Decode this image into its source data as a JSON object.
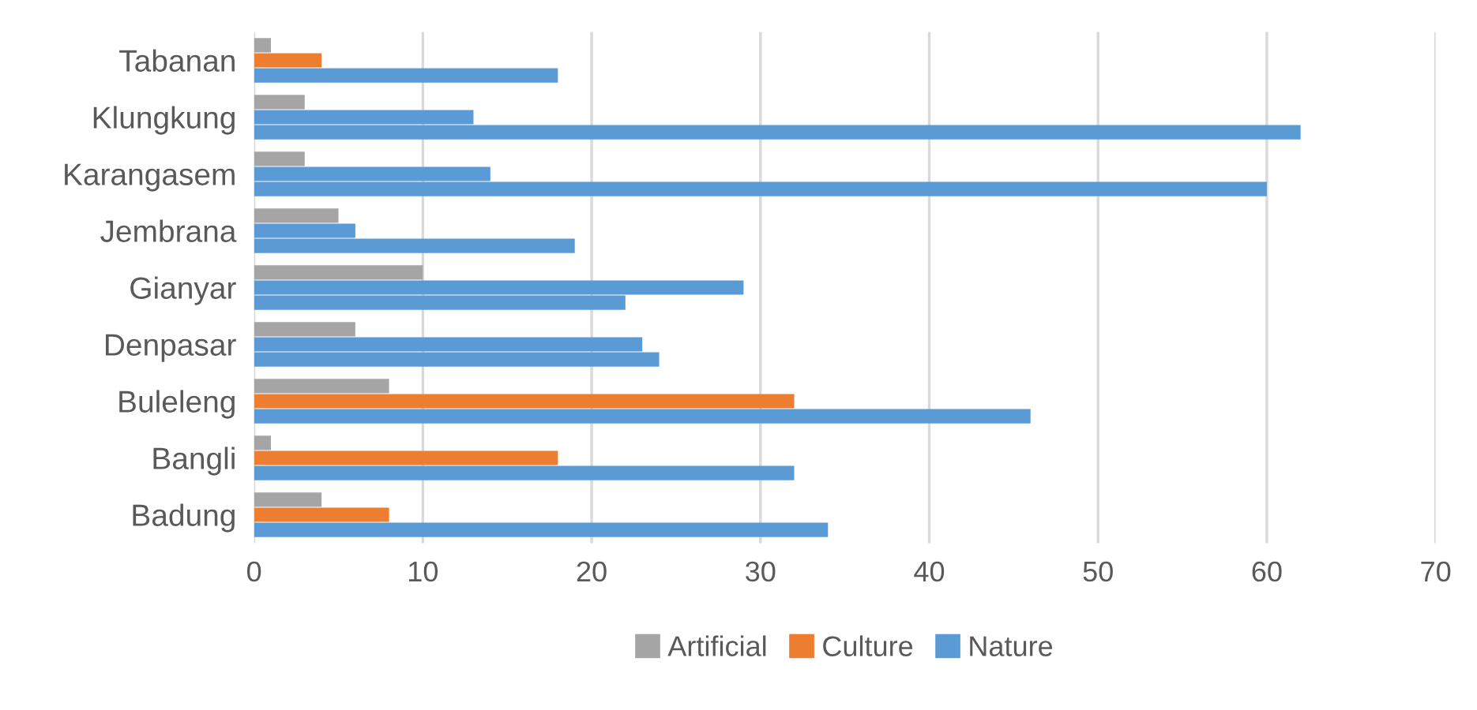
{
  "chart_data": {
    "type": "bar",
    "orientation": "horizontal",
    "categories": [
      "Tabanan",
      "Klungkung",
      "Karangasem",
      "Jembrana",
      "Gianyar",
      "Denpasar",
      "Buleleng",
      "Bangli",
      "Badung"
    ],
    "series": [
      {
        "name": "Artificial",
        "color": "#a5a5a5",
        "values": [
          1,
          3,
          3,
          5,
          10,
          6,
          8,
          1,
          4
        ]
      },
      {
        "name": "Culture",
        "color": "#ed7d31",
        "colors": [
          "#ed7d31",
          "#5b9bd5",
          "#5b9bd5",
          "#5b9bd5",
          "#5b9bd5",
          "#5b9bd5",
          "#ed7d31",
          "#ed7d31",
          "#ed7d31"
        ],
        "values": [
          4,
          13,
          14,
          6,
          29,
          23,
          32,
          18,
          8
        ]
      },
      {
        "name": "Nature",
        "color": "#5b9bd5",
        "values": [
          18,
          62,
          60,
          19,
          22,
          24,
          46,
          32,
          34
        ]
      }
    ],
    "xlim": [
      0,
      70
    ],
    "xticks": [
      0,
      10,
      20,
      30,
      40,
      50,
      60,
      70
    ],
    "grid": "x",
    "legend": "bottom"
  }
}
